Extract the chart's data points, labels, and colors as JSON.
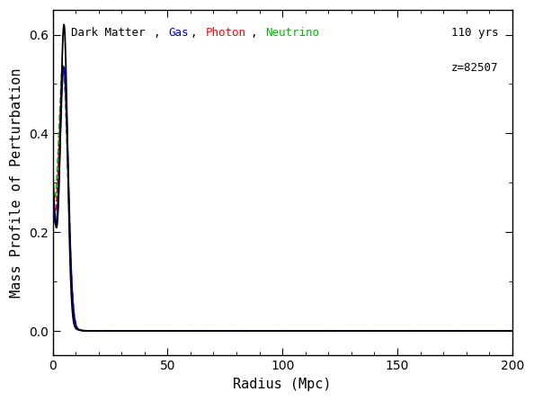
{
  "xlabel": "Radius (Mpc)",
  "ylabel": "Mass Profile of Perturbation",
  "xlim": [
    0,
    200
  ],
  "ylim": [
    -0.05,
    0.65
  ],
  "yticks": [
    0.0,
    0.2,
    0.4,
    0.6
  ],
  "xticks": [
    0,
    50,
    100,
    150,
    200
  ],
  "annotation_time": "110 yrs",
  "annotation_z": "z=82507",
  "line_colors": [
    "black",
    "#0000bb",
    "red",
    "#00bb00"
  ],
  "line_styles": [
    "-",
    "-",
    "--",
    "--"
  ],
  "background_color": "#ffffff",
  "fig_background_color": "#ffffff",
  "peak_dark": 0.585,
  "peak_others": 0.505,
  "peak_r": 5.0,
  "decay_scale": 2.2
}
